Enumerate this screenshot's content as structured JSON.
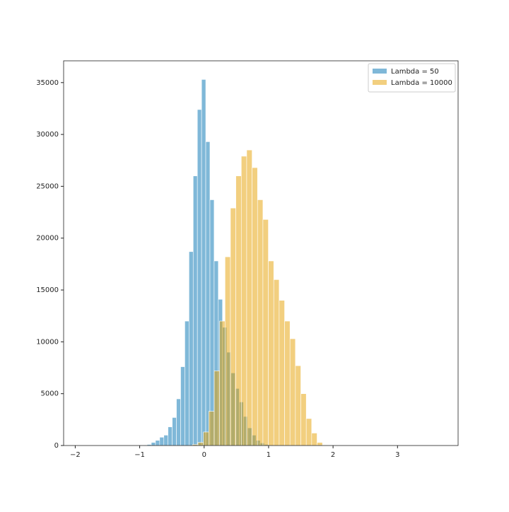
{
  "chart_data": {
    "type": "histogram",
    "series": [
      {
        "name": "Lambda = 50",
        "color": "#0072b2",
        "bins": [
          -0.95,
          -0.885,
          -0.82,
          -0.755,
          -0.69,
          -0.625,
          -0.56,
          -0.495,
          -0.43,
          -0.365,
          -0.3,
          -0.235,
          -0.17,
          -0.105,
          -0.04,
          0.025,
          0.09,
          0.155,
          0.22,
          0.285,
          0.35,
          0.415,
          0.48,
          0.545,
          0.61,
          0.675,
          0.74,
          0.805,
          0.87,
          0.935,
          1.0
        ],
        "values": [
          50,
          100,
          300,
          500,
          800,
          1000,
          1800,
          2700,
          4500,
          7600,
          12000,
          18700,
          26000,
          32400,
          35300,
          29300,
          23700,
          17800,
          14100,
          11400,
          9000,
          7000,
          5500,
          4200,
          2800,
          1700,
          1000,
          500,
          250,
          100
        ]
      },
      {
        "name": "Lambda = 10000",
        "color": "#e69f00",
        "bins": [
          -0.18,
          -0.096,
          -0.012,
          0.072,
          0.156,
          0.24,
          0.324,
          0.408,
          0.492,
          0.576,
          0.66,
          0.744,
          0.828,
          0.912,
          0.996,
          1.08,
          1.164,
          1.248,
          1.332,
          1.416,
          1.5,
          1.584,
          1.668,
          1.752,
          1.836,
          1.92
        ],
        "values": [
          100,
          300,
          1300,
          3300,
          7200,
          12000,
          18200,
          22900,
          26000,
          27900,
          28500,
          26800,
          23700,
          21800,
          17800,
          16000,
          14000,
          12000,
          10300,
          7700,
          5000,
          2600,
          1200,
          300,
          50
        ]
      }
    ],
    "xlim": [
      -2.18,
      3.94
    ],
    "xticks": [
      {
        "value": -2,
        "label": "−2"
      },
      {
        "value": -1,
        "label": "−1"
      },
      0,
      1,
      2,
      3
    ],
    "ylim": [
      0,
      37100
    ],
    "yticks": [
      0,
      5000,
      10000,
      15000,
      20000,
      25000,
      30000,
      35000
    ],
    "legend": "upper right"
  }
}
